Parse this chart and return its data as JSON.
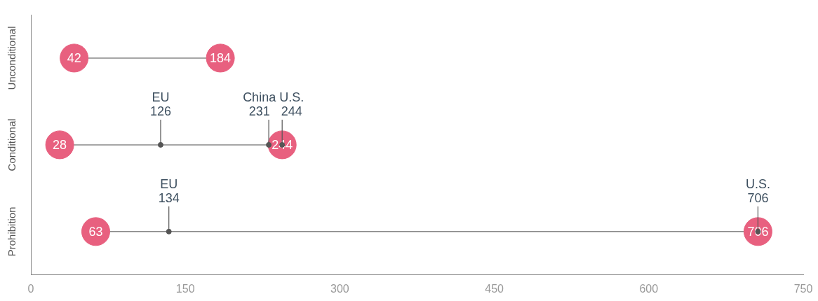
{
  "chart_data": {
    "type": "scatter",
    "orientation": "horizontal",
    "categories": [
      "Unconditional",
      "Conditional",
      "Prohibition"
    ],
    "series": [
      {
        "color": "#e8607f",
        "values": [
          42,
          28,
          63
        ],
        "value_labels": [
          "42",
          "28",
          "63"
        ]
      },
      {
        "color": "#e8607f",
        "values": [
          184,
          244,
          706
        ],
        "value_labels": [
          "184",
          "244",
          "706"
        ]
      },
      {
        "name": "EU",
        "color": "#555555",
        "values": [
          null,
          126,
          134
        ],
        "value_labels": [
          null,
          "126",
          "134"
        ]
      },
      {
        "name": "China",
        "color": "#555555",
        "values": [
          null,
          231,
          null
        ],
        "value_labels": [
          null,
          "231",
          null
        ]
      },
      {
        "name": "U.S.",
        "color": "#555555",
        "values": [
          null,
          244,
          706
        ],
        "value_labels": [
          null,
          "244",
          "706"
        ]
      }
    ],
    "xlim": [
      0,
      750
    ],
    "xticks": [
      0,
      150,
      300,
      450,
      600,
      750
    ],
    "grid": false,
    "legend": false
  }
}
